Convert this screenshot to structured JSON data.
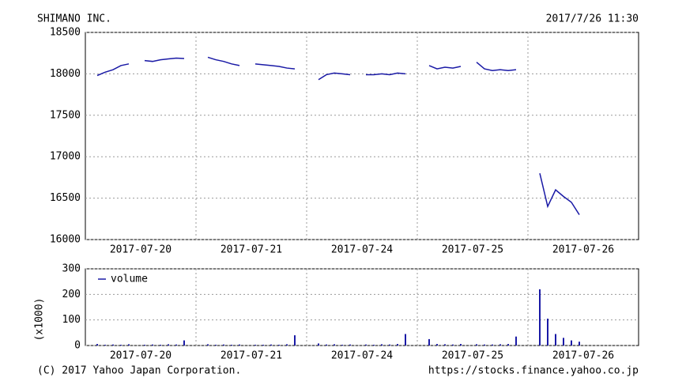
{
  "chart_data": [
    {
      "type": "line",
      "title": "SHIMANO INC.",
      "timestamp": "2017/7/26 11:30",
      "color": "#1a1aa6",
      "categories": [
        null,
        null,
        null,
        null,
        null,
        null,
        null,
        "2017-07-20",
        null,
        null,
        null,
        null,
        null,
        null,
        null,
        null,
        null,
        null,
        null,
        null,
        null,
        "2017-07-21",
        null,
        null,
        null,
        null,
        null,
        null,
        null,
        null,
        null,
        null,
        null,
        null,
        null,
        "2017-07-24",
        null,
        null,
        null,
        null,
        null,
        null,
        null,
        null,
        null,
        null,
        null,
        null,
        null,
        "2017-07-25",
        null,
        null,
        null,
        null,
        null,
        null,
        null,
        null,
        null,
        null,
        null,
        null,
        null,
        "2017-07-26",
        null,
        null,
        null,
        null,
        null,
        null
      ],
      "values": [
        null,
        17980,
        18020,
        18050,
        18100,
        18120,
        null,
        18160,
        18150,
        18170,
        18180,
        18190,
        18185,
        null,
        null,
        18200,
        18170,
        18150,
        18120,
        18100,
        null,
        18120,
        18110,
        18100,
        18090,
        18070,
        18060,
        null,
        null,
        17930,
        17990,
        18010,
        18000,
        17990,
        null,
        17990,
        17990,
        18000,
        17990,
        18010,
        18000,
        null,
        null,
        18100,
        18060,
        18080,
        18070,
        18090,
        null,
        18140,
        18060,
        18040,
        18050,
        18040,
        18050,
        null,
        null,
        16800,
        16400,
        16600,
        16520,
        16450,
        16300,
        null,
        null,
        null,
        null,
        null,
        null,
        null
      ],
      "ylim": [
        16000,
        18500
      ],
      "yticks": [
        16000,
        16500,
        17000,
        17500,
        18000,
        18500
      ],
      "grid": true
    },
    {
      "type": "bar",
      "y_label": "(x1000)",
      "legend": "top-left",
      "categories": [
        null,
        null,
        null,
        null,
        null,
        null,
        null,
        "2017-07-20",
        null,
        null,
        null,
        null,
        null,
        null,
        null,
        null,
        null,
        null,
        null,
        null,
        null,
        "2017-07-21",
        null,
        null,
        null,
        null,
        null,
        null,
        null,
        null,
        null,
        null,
        null,
        null,
        null,
        "2017-07-24",
        null,
        null,
        null,
        null,
        null,
        null,
        null,
        null,
        null,
        null,
        null,
        null,
        null,
        "2017-07-25",
        null,
        null,
        null,
        null,
        null,
        null,
        null,
        null,
        null,
        null,
        null,
        null,
        null,
        "2017-07-26",
        null,
        null,
        null,
        null,
        null,
        null
      ],
      "series": [
        {
          "name": "volume",
          "color": "#1a1aa6",
          "values": [
            null,
            6,
            3,
            4,
            3,
            5,
            null,
            3,
            4,
            3,
            5,
            4,
            20,
            null,
            null,
            5,
            3,
            4,
            3,
            4,
            null,
            3,
            3,
            4,
            3,
            5,
            40,
            null,
            null,
            8,
            4,
            5,
            3,
            4,
            null,
            4,
            3,
            5,
            4,
            6,
            45,
            null,
            null,
            25,
            6,
            5,
            4,
            6,
            null,
            5,
            4,
            4,
            5,
            6,
            35,
            null,
            null,
            220,
            105,
            45,
            30,
            20,
            15,
            null,
            null,
            null,
            null,
            null,
            null,
            null
          ]
        }
      ],
      "ylim": [
        0,
        300
      ],
      "yticks": [
        0,
        100,
        200,
        300
      ],
      "grid": true
    }
  ],
  "footer": {
    "left": "(C) 2017 Yahoo Japan Corporation.",
    "right": "https://stocks.finance.yahoo.co.jp"
  }
}
